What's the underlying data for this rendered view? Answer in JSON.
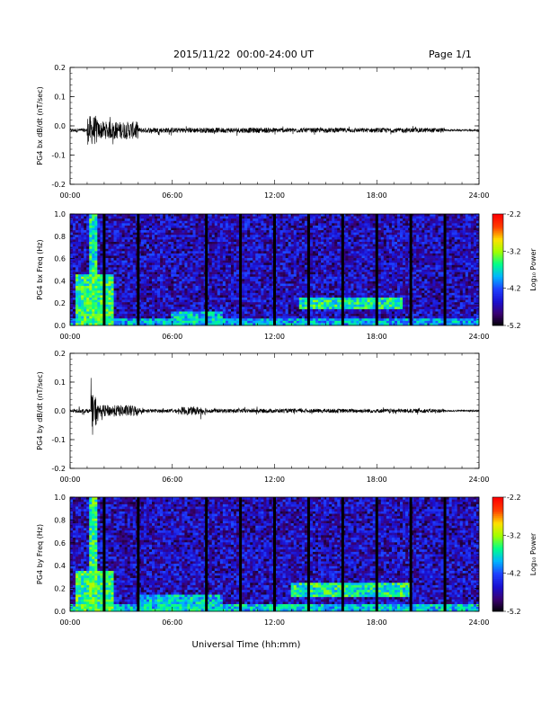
{
  "header": {
    "date_range": "2015/11/22  00:00-24:00 UT",
    "page": "Page 1/1"
  },
  "xlabel": "Universal Time (hh:mm)",
  "x_tick_labels": [
    "00:00",
    "06:00",
    "12:00",
    "18:00",
    "24:00"
  ],
  "colors": {
    "trace": "#000000",
    "gap_bar": "#000000",
    "colormap": [
      "#000000",
      "#3a0070",
      "#1a10d0",
      "#1e40ff",
      "#00b4ff",
      "#00ff8a",
      "#a0ff00",
      "#ffe000",
      "#ff4000",
      "#ff0000"
    ]
  },
  "colorbar": {
    "label": "Log₁₀ Power",
    "ticks": [
      -2.2,
      -3.2,
      -4.2,
      -5.2
    ],
    "tick_labels": [
      "-2.2",
      "-3.2",
      "-4.2",
      "-5.2"
    ],
    "range": [
      -5.2,
      -2.2
    ]
  },
  "chart_data": [
    {
      "id": "bx-timeseries",
      "type": "line",
      "ylabel": "PG4 bx dB/dt (nT/sec)",
      "ylim": [
        -0.2,
        0.2
      ],
      "xlim": [
        0,
        24
      ],
      "x_units": "hours UT",
      "y_tick_labels": [
        "0.2",
        "0.1",
        "0.0",
        "-0.1",
        "-0.2"
      ],
      "y_ticks": [
        0.2,
        0.1,
        0.0,
        -0.1,
        -0.2
      ],
      "baseline": -0.015,
      "activity": [
        {
          "start": 0.0,
          "end": 1.0,
          "amplitude": 0.006
        },
        {
          "start": 1.0,
          "end": 1.6,
          "amplitude": 0.05
        },
        {
          "start": 1.6,
          "end": 4.0,
          "amplitude": 0.03
        },
        {
          "start": 4.0,
          "end": 12.0,
          "amplitude": 0.009
        },
        {
          "start": 12.0,
          "end": 22.0,
          "amplitude": 0.008
        },
        {
          "start": 22.0,
          "end": 24.0,
          "amplitude": 0.003
        }
      ]
    },
    {
      "id": "bx-spectrogram",
      "type": "heatmap",
      "ylabel": "PG4 bx Freq (Hz)",
      "ylim": [
        0.0,
        1.0
      ],
      "xlim": [
        0,
        24
      ],
      "y_tick_labels": [
        "1.0",
        "0.8",
        "0.6",
        "0.4",
        "0.2",
        "0.0"
      ],
      "y_ticks": [
        1.0,
        0.8,
        0.6,
        0.4,
        0.2,
        0.0
      ],
      "gap_hours": [
        2.0,
        4.0,
        8.0,
        10.0,
        12.0,
        14.0,
        16.0,
        18.0,
        20.0,
        22.0
      ],
      "background_log_power": -4.6,
      "features": [
        {
          "t0": 0.3,
          "t1": 2.6,
          "f0": 0.0,
          "f1": 0.45,
          "level": -3.5
        },
        {
          "t0": 1.2,
          "t1": 1.6,
          "f0": 0.0,
          "f1": 1.0,
          "level": -3.6
        },
        {
          "t0": 0.0,
          "t1": 24.0,
          "f0": 0.0,
          "f1": 0.06,
          "level": -3.9
        },
        {
          "t0": 6.0,
          "t1": 9.0,
          "f0": 0.0,
          "f1": 0.12,
          "level": -3.8
        },
        {
          "t0": 13.5,
          "t1": 19.5,
          "f0": 0.15,
          "f1": 0.26,
          "level": -3.6
        }
      ]
    },
    {
      "id": "by-timeseries",
      "type": "line",
      "ylabel": "PG4 by dB/dt (nT/sec)",
      "ylim": [
        -0.2,
        0.2
      ],
      "xlim": [
        0,
        24
      ],
      "x_units": "hours UT",
      "y_tick_labels": [
        "0.2",
        "0.1",
        "0.0",
        "-0.1",
        "-0.2"
      ],
      "y_ticks": [
        0.2,
        0.1,
        0.0,
        -0.1,
        -0.2
      ],
      "baseline": 0.0,
      "activity": [
        {
          "start": 0.0,
          "end": 1.2,
          "amplitude": 0.007
        },
        {
          "start": 1.2,
          "end": 1.6,
          "amplitude": 0.055
        },
        {
          "start": 1.6,
          "end": 4.0,
          "amplitude": 0.02
        },
        {
          "start": 4.0,
          "end": 6.5,
          "amplitude": 0.006
        },
        {
          "start": 6.5,
          "end": 8.0,
          "amplitude": 0.014
        },
        {
          "start": 8.0,
          "end": 22.0,
          "amplitude": 0.007
        },
        {
          "start": 22.0,
          "end": 24.0,
          "amplitude": 0.003
        }
      ]
    },
    {
      "id": "by-spectrogram",
      "type": "heatmap",
      "ylabel": "PG4 by Freq (Hz)",
      "ylim": [
        0.0,
        1.0
      ],
      "xlim": [
        0,
        24
      ],
      "y_tick_labels": [
        "1.0",
        "0.8",
        "0.6",
        "0.4",
        "0.2",
        "0.0"
      ],
      "y_ticks": [
        1.0,
        0.8,
        0.6,
        0.4,
        0.2,
        0.0
      ],
      "gap_hours": [
        2.0,
        4.0,
        8.0,
        10.0,
        12.0,
        14.0,
        16.0,
        18.0,
        20.0,
        22.0
      ],
      "background_log_power": -4.6,
      "features": [
        {
          "t0": 0.3,
          "t1": 2.6,
          "f0": 0.0,
          "f1": 0.35,
          "level": -3.5
        },
        {
          "t0": 1.2,
          "t1": 1.6,
          "f0": 0.0,
          "f1": 1.0,
          "level": -3.5
        },
        {
          "t0": 0.0,
          "t1": 24.0,
          "f0": 0.0,
          "f1": 0.06,
          "level": -3.8
        },
        {
          "t0": 4.0,
          "t1": 9.0,
          "f0": 0.0,
          "f1": 0.14,
          "level": -3.8
        },
        {
          "t0": 13.0,
          "t1": 20.0,
          "f0": 0.12,
          "f1": 0.26,
          "level": -3.6
        }
      ]
    }
  ]
}
